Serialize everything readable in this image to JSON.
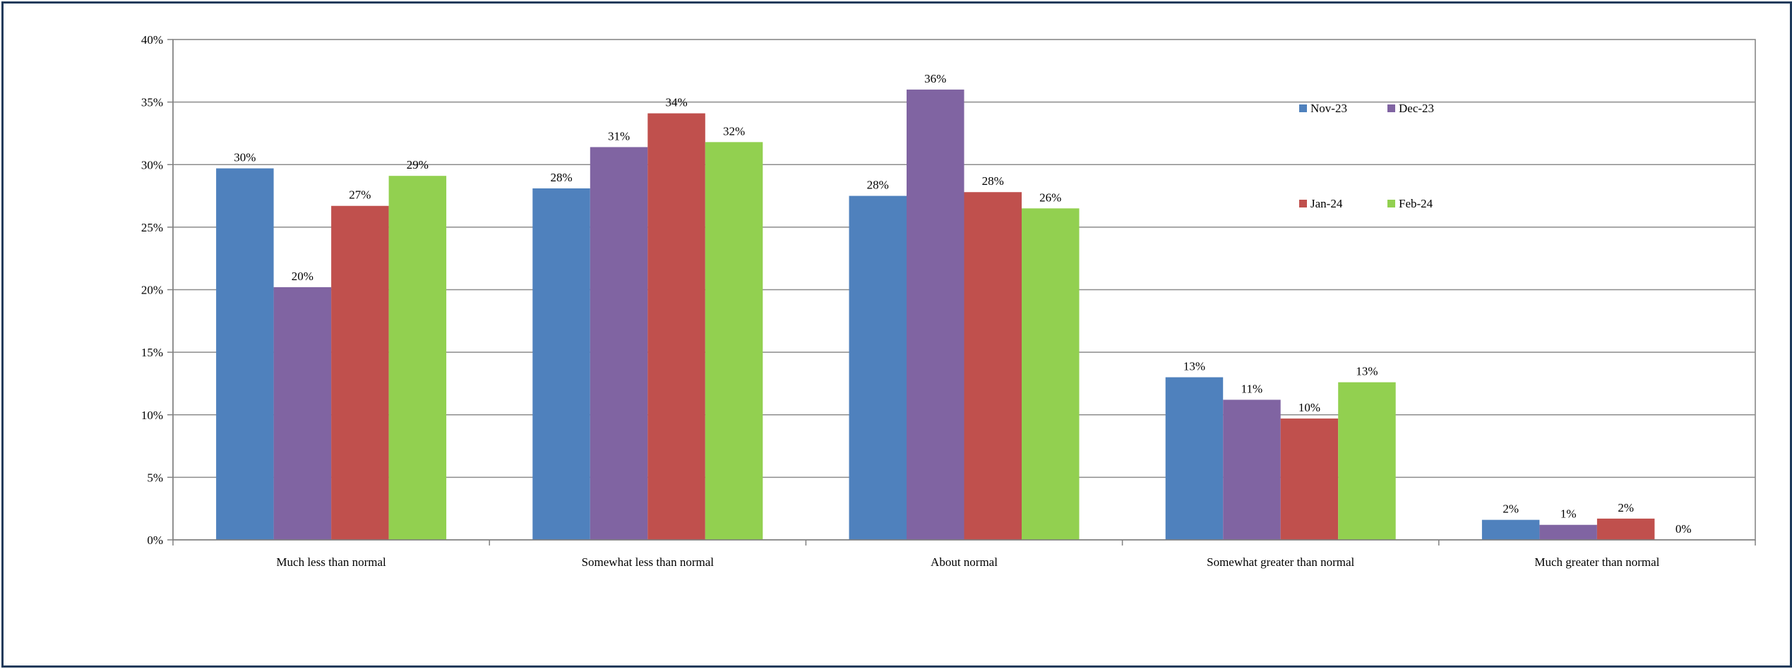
{
  "chart_data": {
    "type": "bar",
    "title": "",
    "xlabel": "",
    "ylabel": "",
    "ylim": [
      0,
      40
    ],
    "yticks": [
      0,
      5,
      10,
      15,
      20,
      25,
      30,
      35,
      40
    ],
    "y_tick_labels": [
      "0%",
      "5%",
      "10%",
      "15%",
      "20%",
      "25%",
      "30%",
      "35%",
      "40%"
    ],
    "grid": true,
    "legend_position": "top-right",
    "categories": [
      "Much less than normal",
      "Somewhat less than normal",
      "About normal",
      "Somewhat greater than normal",
      "Much greater than normal"
    ],
    "series": [
      {
        "name": "Nov-23",
        "color": "#4F81BD",
        "values": [
          29.7,
          28.1,
          27.5,
          13.0,
          1.6
        ],
        "labels": [
          "30%",
          "28%",
          "28%",
          "13%",
          "2%"
        ]
      },
      {
        "name": "Dec-23",
        "color": "#8064A2",
        "values": [
          20.2,
          31.4,
          36.0,
          11.2,
          1.2
        ],
        "labels": [
          "20%",
          "31%",
          "36%",
          "11%",
          "1%"
        ]
      },
      {
        "name": "Jan-24",
        "color": "#C0504D",
        "values": [
          26.7,
          34.1,
          27.8,
          9.7,
          1.7
        ],
        "labels": [
          "27%",
          "34%",
          "28%",
          "10%",
          "2%"
        ]
      },
      {
        "name": "Feb-24",
        "color": "#92D050",
        "values": [
          29.1,
          31.8,
          26.5,
          12.6,
          0.0
        ],
        "labels": [
          "29%",
          "32%",
          "26%",
          "13%",
          "0%"
        ]
      }
    ]
  }
}
